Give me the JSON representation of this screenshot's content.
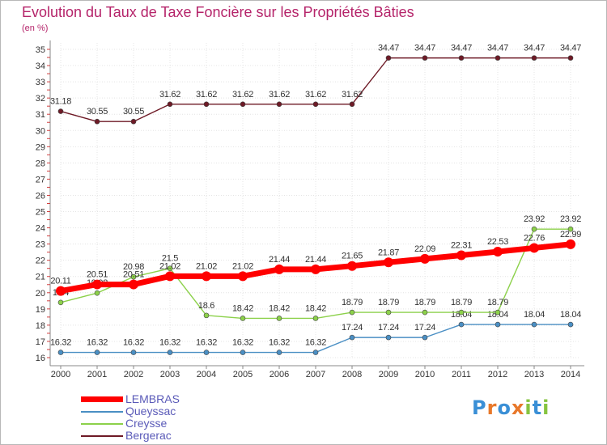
{
  "chart_data": {
    "type": "line",
    "title": "Evolution du Taux de Taxe Foncière sur les Propriétés Bâties",
    "ylabel": "(en %)",
    "xlabel": "",
    "x": [
      "2000",
      "2001",
      "2002",
      "2003",
      "2004",
      "2005",
      "2006",
      "2007",
      "2008",
      "2009",
      "2010",
      "2011",
      "2012",
      "2013",
      "2014"
    ],
    "ylim": [
      16,
      35
    ],
    "yticks": [
      "16",
      "17",
      "18",
      "19",
      "20",
      "21",
      "22",
      "23",
      "24",
      "25",
      "26",
      "27",
      "28",
      "29",
      "30",
      "31",
      "32",
      "33",
      "34",
      "35"
    ],
    "series": [
      {
        "name": "Bergerac",
        "color": "#6e1a26",
        "values": [
          31.18,
          30.55,
          30.55,
          31.62,
          31.62,
          31.62,
          31.62,
          31.62,
          31.62,
          34.47,
          34.47,
          34.47,
          34.47,
          34.47,
          34.47
        ],
        "labels": [
          "31.18",
          "30.55",
          "30.55",
          "31.62",
          "31.62",
          "31.62",
          "31.62",
          "31.62",
          "31.62",
          "34.47",
          "34.47",
          "34.47",
          "34.47",
          "34.47",
          "34.47"
        ]
      },
      {
        "name": "Queyssac",
        "color": "#4a8fc4",
        "values": [
          16.32,
          16.32,
          16.32,
          16.32,
          16.32,
          16.32,
          16.32,
          16.32,
          17.24,
          17.24,
          17.24,
          18.04,
          18.04,
          18.04,
          18.04
        ],
        "labels": [
          "16.32",
          "16.32",
          "16.32",
          "16.32",
          "16.32",
          "16.32",
          "16.32",
          "16.32",
          "17.24",
          "17.24",
          "17.24",
          "18.04",
          "18.04",
          "18.04",
          "18.04"
        ]
      },
      {
        "name": "Creysse",
        "color": "#8cd14a",
        "values": [
          19.4,
          19.98,
          20.98,
          21.5,
          18.6,
          18.42,
          18.42,
          18.42,
          18.79,
          18.79,
          18.79,
          18.79,
          18.79,
          23.92,
          23.92
        ],
        "labels": [
          "19.4",
          "19.98",
          "20.98",
          "21.5",
          "18.6",
          "18.42",
          "18.42",
          "18.42",
          "18.79",
          "18.79",
          "18.79",
          "18.79",
          "18.79",
          "23.92",
          "23.92"
        ]
      },
      {
        "name": "LEMBRAS",
        "color": "#ff0000",
        "values": [
          20.11,
          20.51,
          20.51,
          21.02,
          21.02,
          21.02,
          21.44,
          21.44,
          21.65,
          21.87,
          22.09,
          22.31,
          22.53,
          22.76,
          22.99
        ],
        "labels": [
          "20.11",
          "20.51",
          "20.51",
          "21.02",
          "21.02",
          "21.02",
          "21.44",
          "21.44",
          "21.65",
          "21.87",
          "22.09",
          "22.31",
          "22.53",
          "22.76",
          "22.99"
        ]
      }
    ],
    "legend": [
      "LEMBRAS",
      "Queyssac",
      "Creysse",
      "Bergerac"
    ]
  },
  "logo": {
    "letters": [
      "P",
      "r",
      "o",
      "x",
      "i",
      "t",
      "i"
    ],
    "colors": [
      "#3a8fd6",
      "#e8782a",
      "#3a8fd6",
      "#e8782a",
      "#86c440",
      "#3a8fd6",
      "#86c440"
    ]
  }
}
